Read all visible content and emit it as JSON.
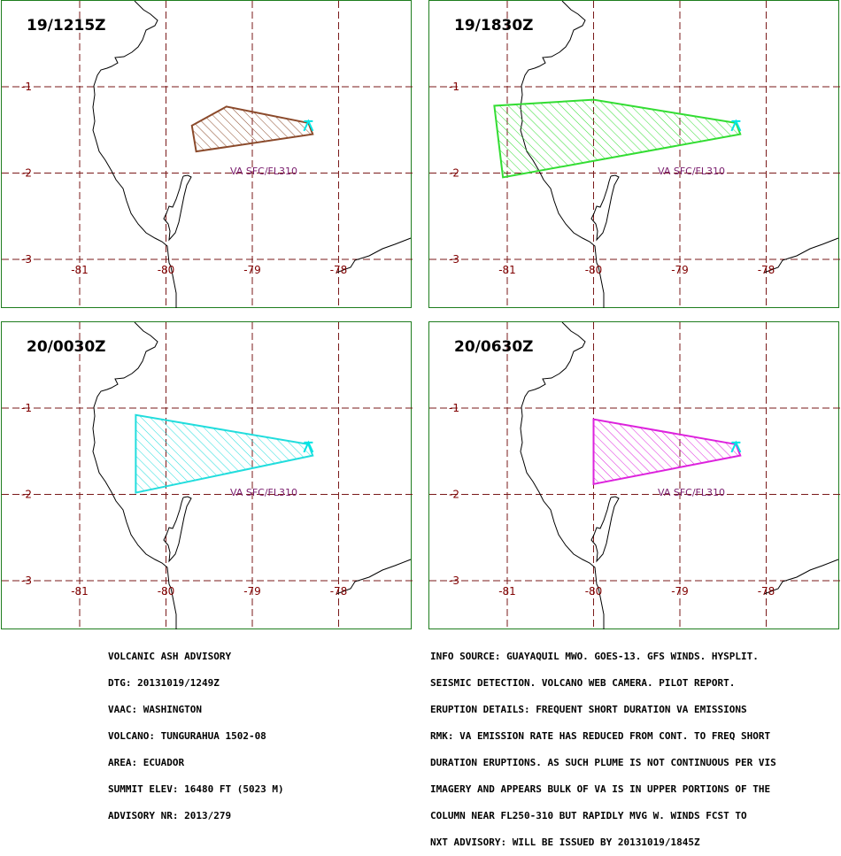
{
  "map": {
    "lat_labels": [
      "-1",
      "-2",
      "-3"
    ],
    "lon_labels": [
      "-81",
      "-80",
      "-79",
      "-78"
    ],
    "volcano_marker": "volcano-triangle-icon",
    "colors": {
      "grid": "#7a1a1a",
      "coast": "#000000",
      "label_text": "#800000",
      "annotation": "#7a1e6e",
      "volcano": "#00e5e5",
      "frame": "#1e7d1e"
    }
  },
  "panels": [
    {
      "id": "p1",
      "title": "19/1215Z",
      "plume_color": "#8b4a2b",
      "annotation": "VA SFC/FL310",
      "plume_lonlat": [
        [
          -79.3,
          -1.23
        ],
        [
          -79.7,
          -1.45
        ],
        [
          -79.65,
          -1.75
        ],
        [
          -78.3,
          -1.55
        ],
        [
          -78.35,
          -1.42
        ]
      ]
    },
    {
      "id": "p2",
      "title": "19/1830Z",
      "plume_color": "#33dd33",
      "annotation": "VA SFC/FL310",
      "plume_lonlat": [
        [
          -80.0,
          -1.15
        ],
        [
          -81.15,
          -1.22
        ],
        [
          -81.05,
          -2.05
        ],
        [
          -78.3,
          -1.55
        ],
        [
          -78.35,
          -1.42
        ]
      ]
    },
    {
      "id": "p3",
      "title": "20/0030Z",
      "plume_color": "#22dddd",
      "annotation": "VA SFC/FL310",
      "plume_lonlat": [
        [
          -80.35,
          -1.08
        ],
        [
          -80.35,
          -1.98
        ],
        [
          -78.3,
          -1.55
        ],
        [
          -78.35,
          -1.42
        ]
      ]
    },
    {
      "id": "p4",
      "title": "20/0630Z",
      "plume_color": "#dd22dd",
      "annotation": "VA SFC/FL310",
      "plume_lonlat": [
        [
          -80.0,
          -1.13
        ],
        [
          -80.0,
          -1.88
        ],
        [
          -78.3,
          -1.55
        ],
        [
          -78.35,
          -1.42
        ]
      ]
    }
  ],
  "advisory_left": [
    "VOLCANIC ASH ADVISORY",
    "DTG: 20131019/1249Z",
    "VAAC: WASHINGTON",
    "VOLCANO: TUNGURAHUA 1502-08",
    "AREA: ECUADOR",
    "SUMMIT ELEV: 16480 FT (5023 M)",
    "ADVISORY NR: 2013/279"
  ],
  "advisory_right": [
    "INFO SOURCE: GUAYAQUIL MWO. GOES-13. GFS WINDS. HYSPLIT.",
    "SEISMIC DETECTION. VOLCANO WEB CAMERA. PILOT REPORT.",
    "ERUPTION DETAILS: FREQUENT SHORT DURATION VA EMISSIONS",
    "RMK: VA EMISSION RATE HAS REDUCED FROM CONT. TO FREQ SHORT",
    "DURATION ERUPTIONS. AS SUCH PLUME IS NOT CONTINUOUS PER VIS",
    "IMAGERY AND APPEARS BULK OF VA IS IN UPPER PORTIONS OF THE",
    "COLUMN NEAR FL250-310 BUT RAPIDLY MVG W. WINDS FCST TO",
    "NXT ADVISORY: WILL BE ISSUED BY 20131019/1845Z"
  ]
}
